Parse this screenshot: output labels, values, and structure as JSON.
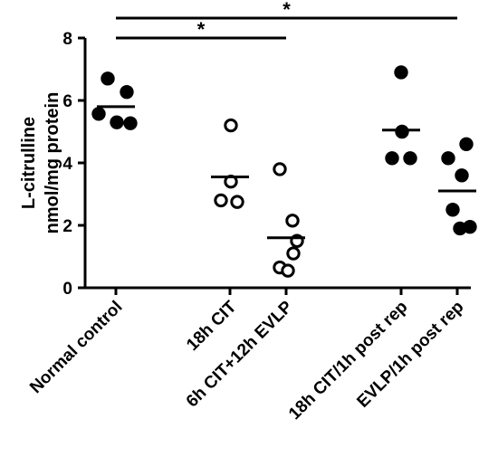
{
  "chart_data": {
    "type": "scatter",
    "ylabel_line1": "L-citrulline",
    "ylabel_line2": "nmol/mg protein",
    "ylim": [
      0,
      8
    ],
    "yticks": [
      0,
      2,
      4,
      6,
      8
    ],
    "categories": [
      "Normal control",
      "18h CIT",
      "6h CIT+12h EVLP",
      "18h CIT/1h post rep",
      "EVLP/1h post rep"
    ],
    "groups": [
      {
        "label": "Normal control",
        "filled": true,
        "mean": 5.8,
        "points": [
          6.7,
          6.27,
          5.57,
          5.3,
          5.27
        ]
      },
      {
        "label": "18h CIT",
        "filled": false,
        "mean": 3.55,
        "points": [
          5.2,
          3.4,
          2.8,
          2.75
        ]
      },
      {
        "label": "6h CIT+12h EVLP",
        "filled": false,
        "mean": 1.6,
        "points": [
          3.8,
          2.15,
          1.5,
          1.1,
          0.65,
          0.55
        ]
      },
      {
        "label": "18h CIT/1h post rep",
        "filled": true,
        "mean": 5.05,
        "points": [
          6.9,
          5.0,
          4.15,
          4.15
        ]
      },
      {
        "label": "EVLP/1h post rep",
        "filled": true,
        "mean": 3.1,
        "points": [
          4.6,
          4.15,
          3.6,
          2.5,
          1.95,
          1.9
        ]
      }
    ],
    "significance": [
      {
        "from": "Normal control",
        "to": "6h CIT+12h EVLP",
        "label": "*"
      },
      {
        "from": "Normal control",
        "to": "EVLP/1h post rep",
        "label": "*"
      }
    ]
  }
}
